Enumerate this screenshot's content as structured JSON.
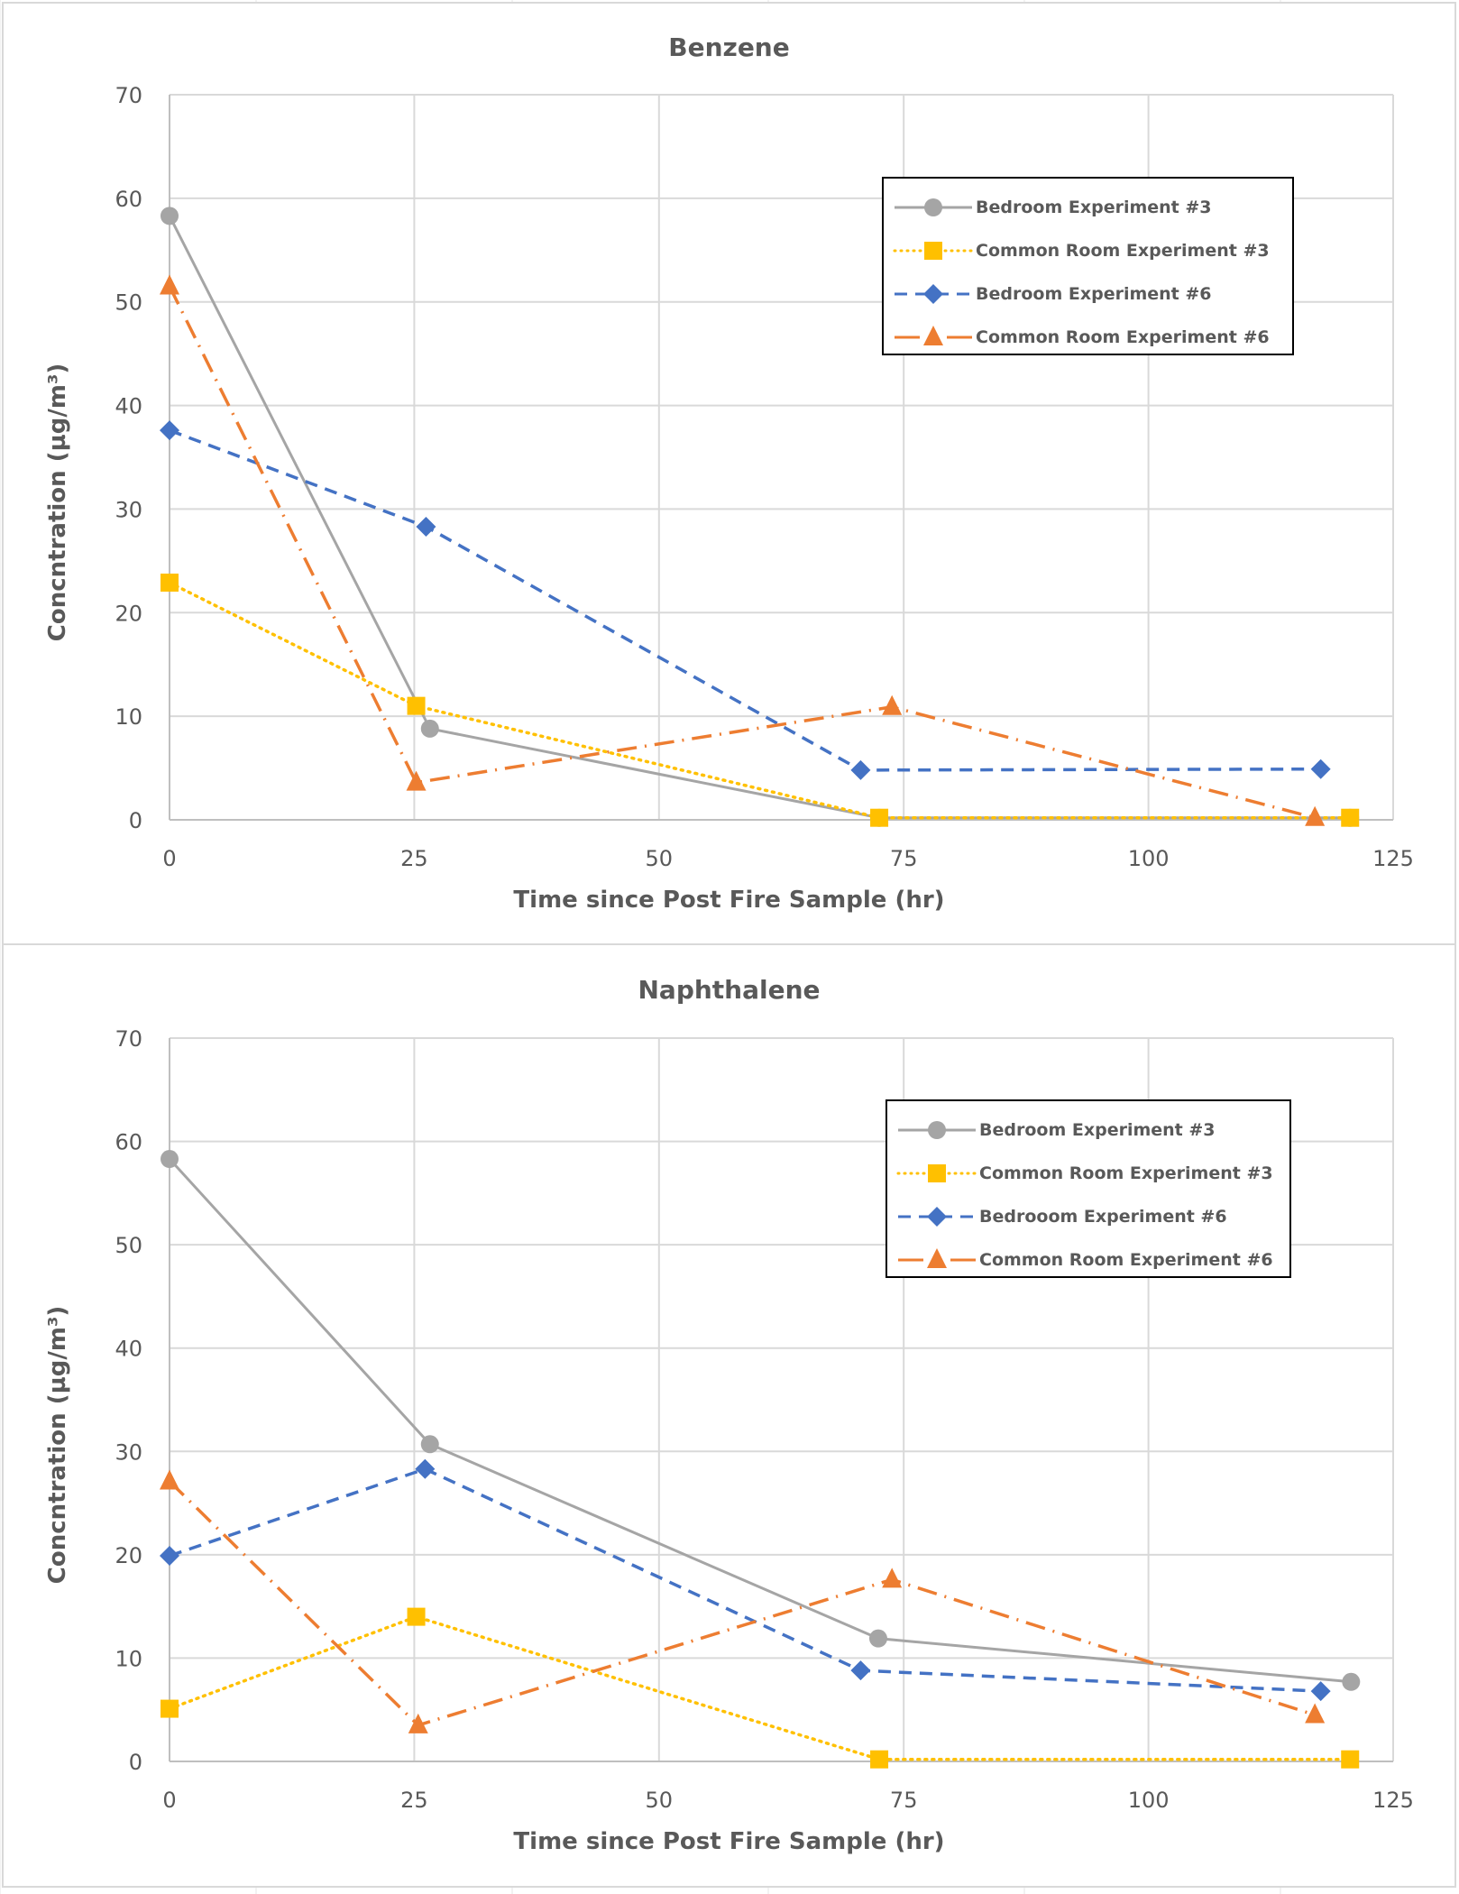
{
  "chart_data": [
    {
      "type": "line",
      "title": "Benzene",
      "xlabel": "Time since Post Fire Sample (hr)",
      "ylabel": "Concntration (µg/m³)",
      "xlim": [
        0,
        125
      ],
      "ylim": [
        0,
        70
      ],
      "xticks": [
        0,
        25,
        50,
        75,
        100,
        125
      ],
      "yticks": [
        0,
        10,
        20,
        30,
        40,
        50,
        60,
        70
      ],
      "grid": true,
      "legend_position": "top-right",
      "series": [
        {
          "name": "Bedroom Experiment #3",
          "color": "#A5A5A5",
          "marker": "circle",
          "line": "solid",
          "x": [
            0,
            26.6,
            72.5,
            120.6
          ],
          "y": [
            58.3,
            8.8,
            0.2,
            0.2
          ]
        },
        {
          "name": "Common Room Experiment #3",
          "color": "#FFC000",
          "marker": "square",
          "line": "dotted",
          "x": [
            0,
            25.2,
            72.5,
            120.6
          ],
          "y": [
            22.9,
            11.0,
            0.2,
            0.2
          ]
        },
        {
          "name": "Bedroom Experiment #6",
          "color": "#4472C4",
          "marker": "diamond",
          "line": "dashed",
          "x": [
            0,
            26.2,
            70.6,
            117.6
          ],
          "y": [
            37.6,
            28.3,
            4.8,
            4.9
          ]
        },
        {
          "name": "Common Room Experiment #6",
          "color": "#ED7D31",
          "marker": "triangle",
          "line": "dashdot",
          "x": [
            0,
            25.2,
            73.8,
            117.0
          ],
          "y": [
            51.5,
            3.6,
            10.9,
            0.2
          ]
        }
      ]
    },
    {
      "type": "line",
      "title": "Naphthalene",
      "xlabel": "Time since Post Fire Sample (hr)",
      "ylabel": "Concntration (µg/m³)",
      "xlim": [
        0,
        125
      ],
      "ylim": [
        0,
        70
      ],
      "xticks": [
        0,
        25,
        50,
        75,
        100,
        125
      ],
      "yticks": [
        0,
        10,
        20,
        30,
        40,
        50,
        60,
        70
      ],
      "grid": true,
      "legend_position": "top-right",
      "series": [
        {
          "name": "Bedroom Experiment #3",
          "color": "#A5A5A5",
          "marker": "circle",
          "line": "solid",
          "x": [
            0,
            26.6,
            72.4,
            120.7
          ],
          "y": [
            58.3,
            30.7,
            11.9,
            7.7
          ]
        },
        {
          "name": "Common Room Experiment #3",
          "color": "#FFC000",
          "marker": "square",
          "line": "dotted",
          "x": [
            0,
            25.2,
            72.5,
            120.6
          ],
          "y": [
            5.1,
            14.0,
            0.2,
            0.2
          ]
        },
        {
          "name": "Bedrooom Experiment #6",
          "color": "#4472C4",
          "marker": "diamond",
          "line": "dashed",
          "x": [
            0,
            26.1,
            70.6,
            117.6
          ],
          "y": [
            19.9,
            28.3,
            8.8,
            6.8
          ]
        },
        {
          "name": "Common Room Experiment #6",
          "color": "#ED7D31",
          "marker": "triangle",
          "line": "dashdot",
          "x": [
            0,
            25.4,
            73.8,
            117.0
          ],
          "y": [
            27.1,
            3.5,
            17.6,
            4.5
          ]
        }
      ]
    }
  ]
}
